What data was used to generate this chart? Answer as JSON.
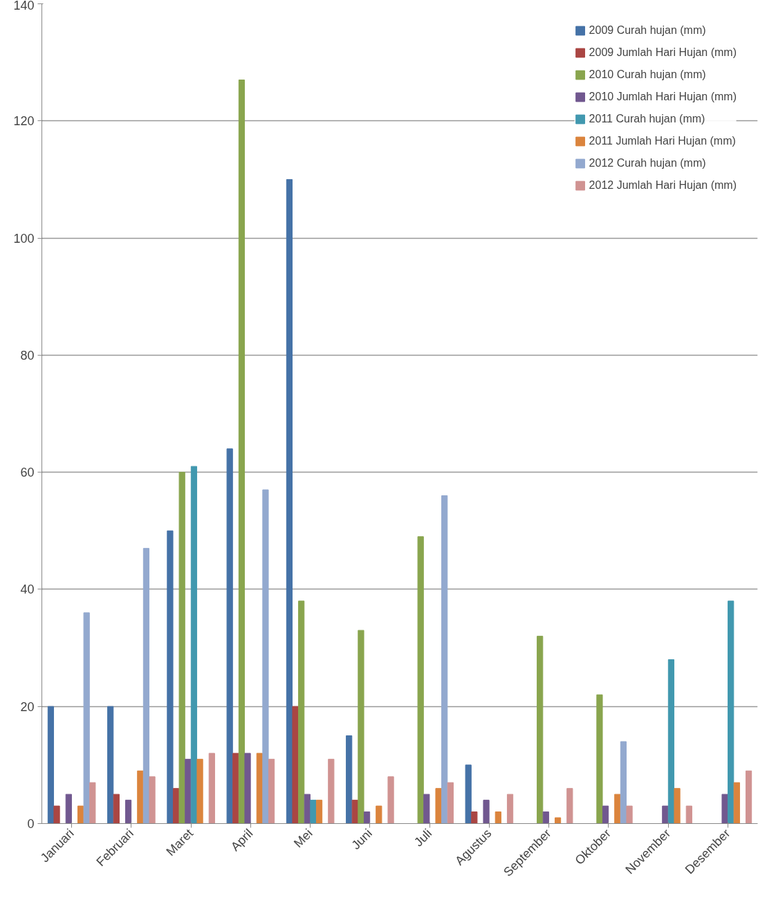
{
  "chart_data": {
    "type": "bar",
    "categories": [
      "Januari",
      "Februari",
      "Maret",
      "April",
      "Mei",
      "Juni",
      "Juli",
      "Agustus",
      "September",
      "Oktober",
      "November",
      "Desember"
    ],
    "series": [
      {
        "name": "2009 Curah hujan (mm)",
        "color": "#4572a7",
        "values": [
          20,
          20,
          50,
          64,
          110,
          15,
          null,
          10,
          null,
          null,
          null,
          null
        ]
      },
      {
        "name": "2009 Jumlah Hari Hujan (mm)",
        "color": "#aa4643",
        "values": [
          3,
          5,
          6,
          12,
          20,
          4,
          null,
          2,
          null,
          null,
          null,
          null
        ]
      },
      {
        "name": "2010 Curah hujan (mm)",
        "color": "#89a54e",
        "values": [
          null,
          null,
          60,
          127,
          38,
          33,
          49,
          null,
          32,
          22,
          null,
          null
        ]
      },
      {
        "name": "2010 Jumlah Hari Hujan (mm)",
        "color": "#71588f",
        "values": [
          5,
          4,
          11,
          12,
          5,
          2,
          5,
          4,
          2,
          3,
          3,
          5
        ]
      },
      {
        "name": "2011 Curah hujan (mm)",
        "color": "#4198af",
        "values": [
          null,
          null,
          61,
          null,
          4,
          null,
          null,
          null,
          null,
          null,
          28,
          38
        ]
      },
      {
        "name": "2011 Jumlah Hari Hujan (mm)",
        "color": "#db843d",
        "values": [
          3,
          9,
          11,
          12,
          4,
          3,
          6,
          2,
          1,
          5,
          6,
          7
        ]
      },
      {
        "name": "2012 Curah hujan (mm)",
        "color": "#93a9cf",
        "values": [
          36,
          47,
          null,
          57,
          null,
          null,
          56,
          null,
          null,
          14,
          null,
          null
        ]
      },
      {
        "name": "2012 Jumlah Hari Hujan (mm)",
        "color": "#d09392",
        "values": [
          7,
          8,
          12,
          11,
          11,
          8,
          7,
          5,
          6,
          3,
          3,
          9
        ]
      }
    ],
    "ylim": [
      0,
      140
    ],
    "yticks": [
      0,
      20,
      40,
      60,
      80,
      100,
      120,
      140
    ],
    "grid": "y",
    "legend": "top right"
  }
}
